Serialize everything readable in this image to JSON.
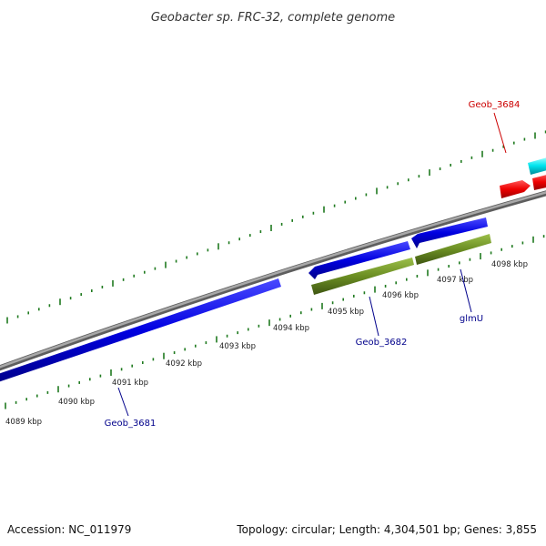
{
  "title": "Geobacter sp. FRC-32, complete genome",
  "footer": {
    "accession": "Accession: NC_011979",
    "summary": "Topology: circular; Length: 4,304,501 bp; Genes: 3,855"
  },
  "colors": {
    "backbone": "#8a8a8a",
    "tick": "#1f7a1f",
    "cds_forward": "#0000dd",
    "cds_other": "#6b8e23",
    "red_gene": "#ee0000",
    "cyan_gene": "#00e5ee",
    "label_blue": "#00008b",
    "label_red": "#cc0000"
  },
  "scale_labels": [
    "4089 kbp",
    "4090 kbp",
    "4091 kbp",
    "4092 kbp",
    "4093 kbp",
    "4094 kbp",
    "4095 kbp",
    "4096 kbp",
    "4097 kbp",
    "4098 kbp"
  ],
  "gene_labels": {
    "geob_3684": "Geob_3684",
    "geob_3682": "Geob_3682",
    "glmU": "glmU",
    "geob_3681": "Geob_3681"
  }
}
